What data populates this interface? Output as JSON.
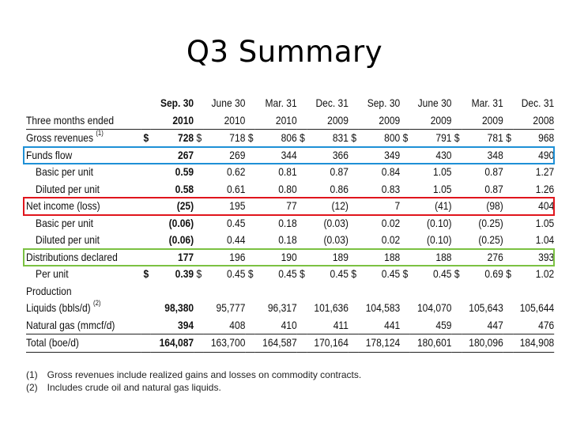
{
  "slide": {
    "title": "Q3 Summary"
  },
  "table": {
    "header_line1": [
      "Sep. 30",
      "June 30",
      "Mar. 31",
      "Dec. 31",
      "Sep. 30",
      "June 30",
      "Mar. 31",
      "Dec. 31"
    ],
    "header_line2": [
      "2010",
      "2010",
      "2010",
      "2009",
      "2009",
      "2009",
      "2009",
      "2008"
    ],
    "header_label": "Three months ended",
    "rows": [
      {
        "label": "Gross revenues",
        "sup": "(1)",
        "cur": "$",
        "values": [
          "728",
          "718",
          "806",
          "831",
          "800",
          "791",
          "781",
          "968"
        ]
      },
      {
        "label": "Funds flow",
        "values": [
          "267",
          "269",
          "344",
          "366",
          "349",
          "430",
          "348",
          "490"
        ]
      },
      {
        "label": "Basic per unit",
        "values": [
          "0.59",
          "0.62",
          "0.81",
          "0.87",
          "0.84",
          "1.05",
          "0.87",
          "1.27"
        ]
      },
      {
        "label": "Diluted per unit",
        "values": [
          "0.58",
          "0.61",
          "0.80",
          "0.86",
          "0.83",
          "1.05",
          "0.87",
          "1.26"
        ]
      },
      {
        "label": "Net income (loss)",
        "values": [
          "(25)",
          "195",
          "77",
          "(12)",
          "7",
          "(41)",
          "(98)",
          "404"
        ]
      },
      {
        "label": "Basic per unit",
        "values": [
          "(0.06)",
          "0.45",
          "0.18",
          "(0.03)",
          "0.02",
          "(0.10)",
          "(0.25)",
          "1.05"
        ]
      },
      {
        "label": "Diluted per unit",
        "values": [
          "(0.06)",
          "0.44",
          "0.18",
          "(0.03)",
          "0.02",
          "(0.10)",
          "(0.25)",
          "1.04"
        ]
      },
      {
        "label": "Distributions declared",
        "values": [
          "177",
          "196",
          "190",
          "189",
          "188",
          "188",
          "276",
          "393"
        ]
      },
      {
        "label": "Per unit",
        "cur": "$",
        "values": [
          "0.39",
          "0.45",
          "0.45",
          "0.45",
          "0.45",
          "0.45",
          "0.69",
          "1.02"
        ]
      },
      {
        "label": "Production"
      },
      {
        "label": "Liquids (bbls/d)",
        "sup": "(2)",
        "values": [
          "98,380",
          "95,777",
          "96,317",
          "101,636",
          "104,583",
          "104,070",
          "105,643",
          "105,644"
        ]
      },
      {
        "label": "Natural gas (mmcf/d)",
        "values": [
          "394",
          "408",
          "410",
          "411",
          "441",
          "459",
          "447",
          "476"
        ]
      },
      {
        "label": "Total (boe/d)",
        "values": [
          "164,087",
          "163,700",
          "164,587",
          "170,164",
          "178,124",
          "180,601",
          "180,096",
          "184,908"
        ]
      }
    ]
  },
  "footnotes": [
    {
      "num": "(1)",
      "text": "Gross revenues include realized gains and losses on commodity contracts."
    },
    {
      "num": "(2)",
      "text": "Includes crude oil and natural gas liquids."
    }
  ],
  "highlights": {
    "funds_flow": "#1e90d6",
    "net_income": "#e0151c",
    "distributions": "#7bc142"
  }
}
